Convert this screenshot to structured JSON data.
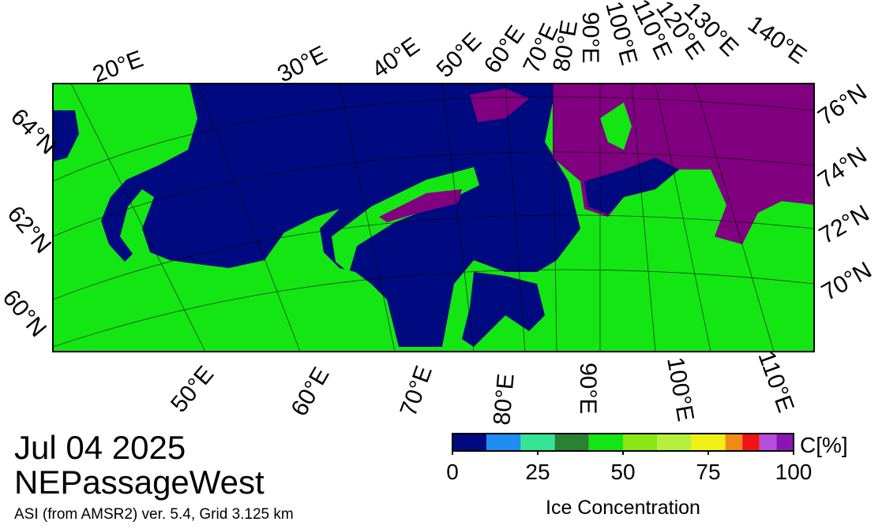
{
  "header": {
    "date": "Jul 04 2025",
    "region": "NEPassageWest",
    "footnote": "ASI (from AMSR2) ver. 5.4,  Grid 3.125 km"
  },
  "map": {
    "top_labels": [
      "20°E",
      "30°E",
      "40°E",
      "50°E",
      "60°E",
      "70°E",
      "80°E",
      "90°E",
      "100°E",
      "110°E",
      "120°E",
      "130°E",
      "140°E"
    ],
    "right_labels": [
      "76°N",
      "74°N",
      "72°N",
      "70°N"
    ],
    "left_labels": [
      "64°N",
      "62°N",
      "60°N"
    ],
    "bottom_labels": [
      "50°E",
      "60°E",
      "70°E",
      "80°E",
      "90°E",
      "100°E",
      "110°E"
    ]
  },
  "colorbar": {
    "bounds": [
      0,
      10,
      20,
      30,
      40,
      50,
      60,
      70,
      80,
      85,
      90,
      95,
      100
    ],
    "colors": [
      "#000a80",
      "#1e8cf0",
      "#32e696",
      "#288232",
      "#14e614",
      "#8ce614",
      "#b4f03c",
      "#f0f014",
      "#f08c14",
      "#f01414",
      "#b450dc",
      "#8c14b4"
    ],
    "lim": [
      0,
      100
    ],
    "ticks": [
      0,
      25,
      50,
      75,
      100
    ],
    "label": "Ice Concentration",
    "unit": "C[%]"
  }
}
